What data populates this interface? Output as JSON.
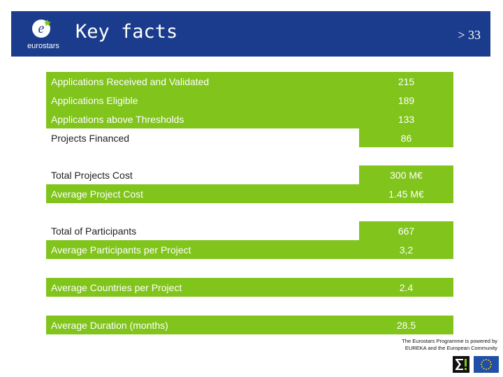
{
  "header": {
    "logo_text": "eurostars",
    "title": "Key facts",
    "page_number": "> 33"
  },
  "facts": [
    {
      "label": "Applications Received and Validated",
      "value": "215"
    },
    {
      "label": "Applications Eligible",
      "value": "189"
    },
    {
      "label": "Applications above Thresholds",
      "value": "133"
    },
    {
      "label": "Projects Financed",
      "value": "86"
    },
    {
      "label": "Total Projects Cost",
      "value": "300 M€"
    },
    {
      "label": "Average Project Cost",
      "value": "1.45 M€"
    },
    {
      "label": "Total of Participants",
      "value": "667"
    },
    {
      "label": "Average Participants per Project",
      "value": "3,2"
    },
    {
      "label": "Average Countries per Project",
      "value": "2.4"
    },
    {
      "label": "Average Duration (months)",
      "value": "28.5"
    }
  ],
  "footer": {
    "line1": "The Eurostars Programme is powered by",
    "line2": "EUREKA and the European Community"
  },
  "colors": {
    "header_bg": "#1b3c8c",
    "accent_green": "#80c41c"
  }
}
